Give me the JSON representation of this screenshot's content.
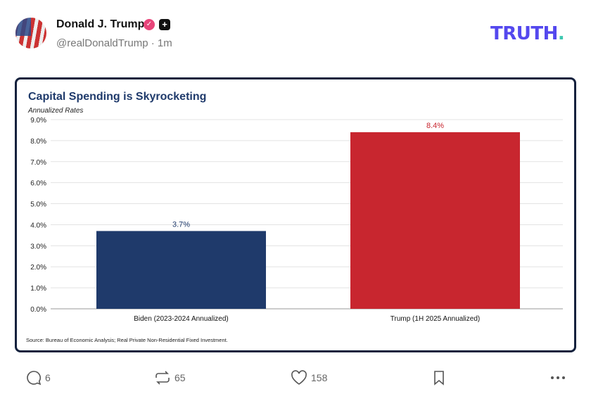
{
  "post": {
    "author": "Donald J. Trump",
    "handle": "@realDonaldTrump",
    "time": "· 1m",
    "logo": "TRUTH",
    "logo_dot": "."
  },
  "colors": {
    "biden": "#1f3a6b",
    "trump": "#c8262f",
    "title": "#1f3a6b",
    "logo": "#5448ee",
    "logo_dot": "#3ec8b0"
  },
  "actions": {
    "replies": "6",
    "reposts": "65",
    "likes": "158"
  },
  "chart_data": {
    "type": "bar",
    "title": "Capital Spending is Skyrocketing",
    "subtitle": "Annualized Rates",
    "categories": [
      "Biden (2023-2024 Annualized)",
      "Trump (1H 2025 Annualized)"
    ],
    "values": [
      3.7,
      8.4
    ],
    "data_labels": [
      "3.7%",
      "8.4%"
    ],
    "ylim": [
      0,
      9
    ],
    "yticks": [
      "0.0%",
      "1.0%",
      "2.0%",
      "3.0%",
      "4.0%",
      "5.0%",
      "6.0%",
      "7.0%",
      "8.0%",
      "9.0%"
    ],
    "grid": true,
    "source": "Source: Bureau of Economic Analysis; Real Private Non-Residential Fixed Investment."
  }
}
